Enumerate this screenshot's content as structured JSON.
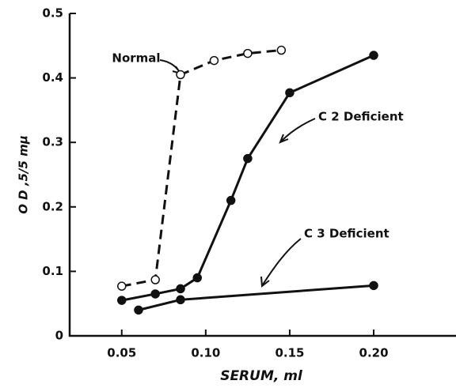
{
  "chart_data": {
    "type": "line",
    "xlabel": "SERUM, ml",
    "ylabel": "O D ,5/5 mμ",
    "xlim": [
      0.019,
      0.249
    ],
    "ylim": [
      0,
      0.5
    ],
    "xticks": [
      0.05,
      {
        "value": 0.1,
        "label": "0.10"
      },
      0.15,
      {
        "value": 0.2,
        "label": "0.20"
      }
    ],
    "yticks": [
      0,
      0.1,
      0.2,
      0.3,
      0.4,
      0.5
    ],
    "series": [
      {
        "name": "Normal",
        "color": "#111111",
        "dashed": true,
        "marker": "open",
        "x": [
          0.05,
          0.07,
          0.085,
          0.105,
          0.125,
          0.145
        ],
        "values": [
          0.077,
          0.087,
          0.405,
          0.427,
          0.438,
          0.443
        ]
      },
      {
        "name": "C 2 Deficient",
        "color": "#111111",
        "dashed": false,
        "marker": "filled",
        "x": [
          0.05,
          0.07,
          0.085,
          0.095,
          0.115,
          0.125,
          0.15,
          0.2
        ],
        "values": [
          0.055,
          0.065,
          0.073,
          0.09,
          0.21,
          0.275,
          0.377,
          0.435
        ]
      },
      {
        "name": "C 3 Deficient",
        "color": "#111111",
        "dashed": false,
        "marker": "filled",
        "x": [
          0.06,
          0.085,
          0.2
        ],
        "values": [
          0.04,
          0.056,
          0.078
        ]
      }
    ]
  }
}
